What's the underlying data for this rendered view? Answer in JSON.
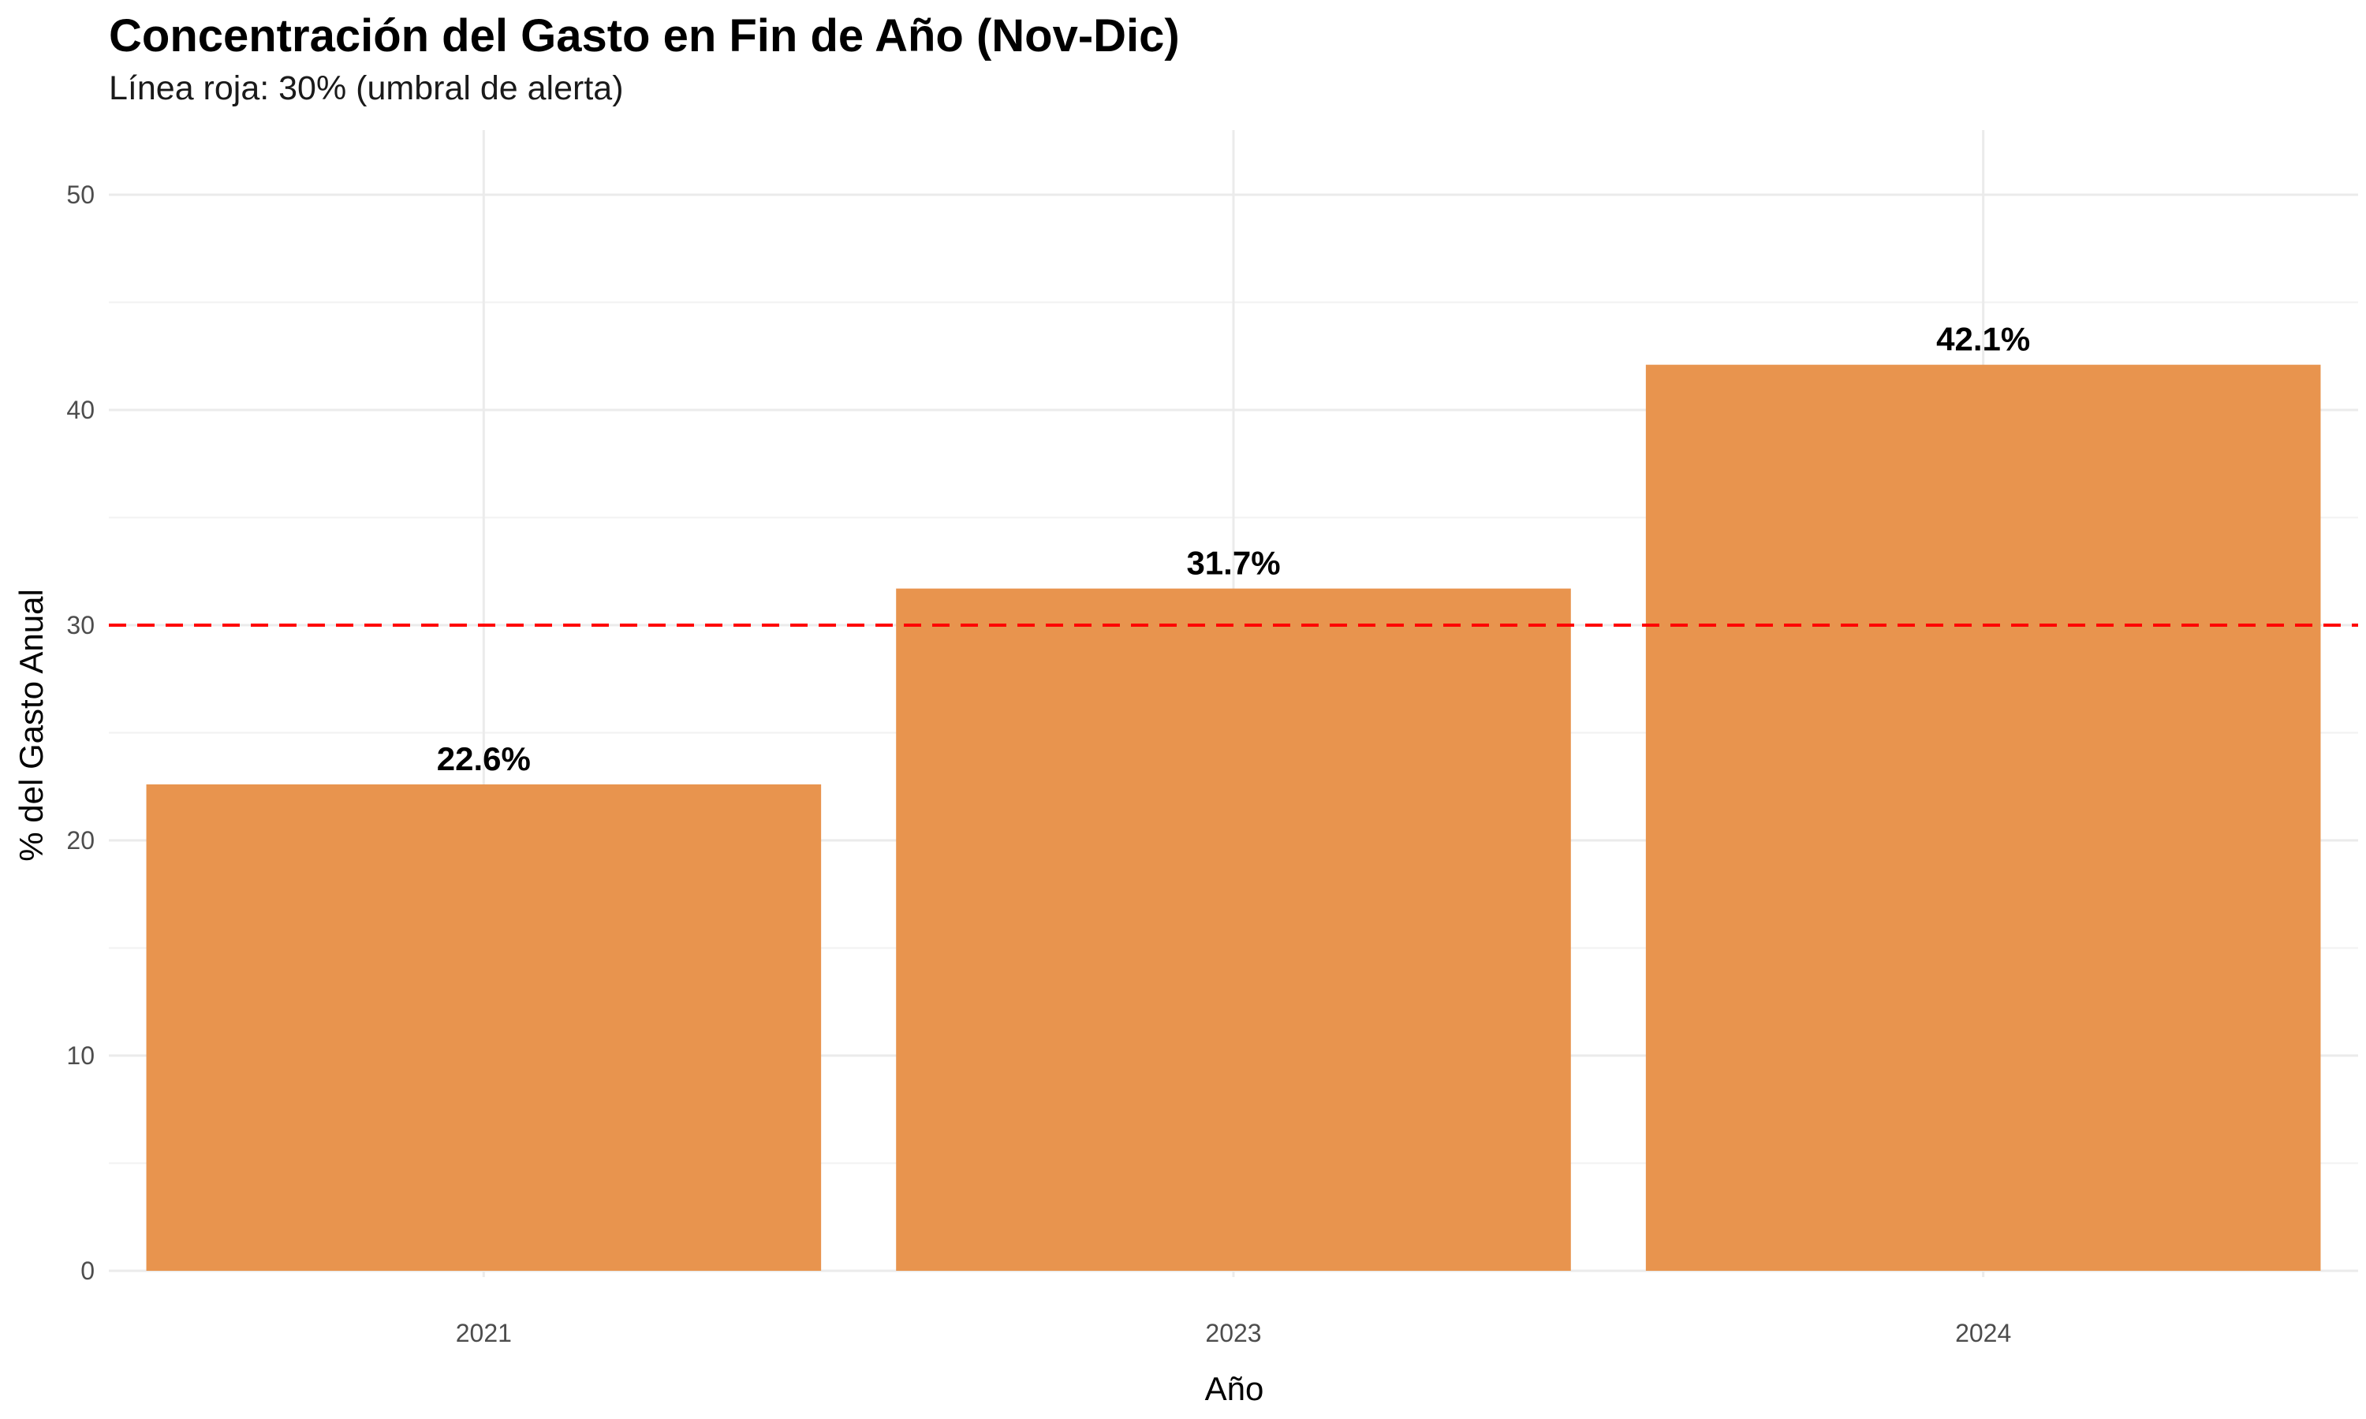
{
  "chart_data": {
    "type": "bar",
    "title": "Concentración del Gasto en Fin de Año (Nov-Dic)",
    "subtitle": "Línea roja: 30% (umbral de alerta)",
    "xlabel": "Año",
    "ylabel": "% del Gasto Anual",
    "categories": [
      "2021",
      "2023",
      "2024"
    ],
    "values": [
      22.6,
      31.7,
      42.1
    ],
    "data_labels": [
      "22.6%",
      "31.7%",
      "42.1%"
    ],
    "ylim": [
      0,
      52
    ],
    "yticks": [
      0,
      10,
      20,
      30,
      40,
      50
    ],
    "threshold": 30,
    "grid": true,
    "colors": {
      "bar": "#e8924a",
      "threshold_line": "#ff0000",
      "grid_major": "#ebebeb",
      "grid_minor": "#f2f2f2"
    }
  }
}
